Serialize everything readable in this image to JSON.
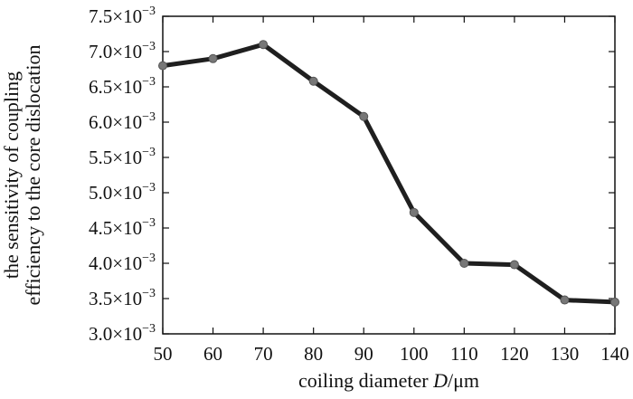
{
  "chart_data": {
    "type": "line",
    "title": "",
    "xlabel_main": "coiling diameter ",
    "xlabel_var": "D",
    "xlabel_unit": "/μm",
    "ylabel_line1": "the sensitivity of coupling",
    "ylabel_line2": "efficiency to the core dislocation",
    "xlim": [
      50,
      140
    ],
    "ylim": [
      3.0,
      7.5
    ],
    "y_scale_exponent": -3,
    "grid": false,
    "x_ticks": [
      "50",
      "60",
      "70",
      "80",
      "90",
      "100",
      "110",
      "120",
      "130",
      "140"
    ],
    "y_ticks": [
      {
        "value": 3.0,
        "mantissa": "3.0×10",
        "exp": "−3"
      },
      {
        "value": 3.5,
        "mantissa": "3.5×10",
        "exp": "−3"
      },
      {
        "value": 4.0,
        "mantissa": "4.0×10",
        "exp": "−3"
      },
      {
        "value": 4.5,
        "mantissa": "4.5×10",
        "exp": "−3"
      },
      {
        "value": 5.0,
        "mantissa": "5.0×10",
        "exp": "−3"
      },
      {
        "value": 5.5,
        "mantissa": "5.5×10",
        "exp": "−3"
      },
      {
        "value": 6.0,
        "mantissa": "6.0×10",
        "exp": "−3"
      },
      {
        "value": 6.5,
        "mantissa": "6.5×10",
        "exp": "−3"
      },
      {
        "value": 7.0,
        "mantissa": "7.0×10",
        "exp": "−3"
      },
      {
        "value": 7.5,
        "mantissa": "7.5×10",
        "exp": "−3"
      }
    ],
    "series": [
      {
        "color": "#1f1f1f",
        "marker_color": "#777777",
        "x": [
          50,
          60,
          70,
          80,
          90,
          100,
          110,
          120,
          130,
          140
        ],
        "y": [
          6.8,
          6.9,
          7.1,
          6.58,
          6.08,
          4.72,
          4.0,
          3.98,
          3.48,
          3.45
        ]
      }
    ]
  }
}
